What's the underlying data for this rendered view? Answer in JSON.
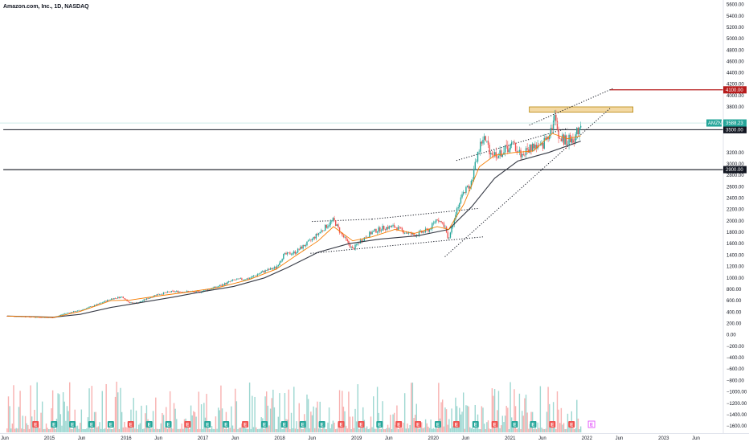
{
  "header": {
    "title": "Amazon.com, Inc., 1D, NASDAQ"
  },
  "colors": {
    "up": "#26a69a",
    "down": "#ef5350",
    "ma_fast": "#f57c00",
    "ma_slow": "#363a45",
    "last_price_tag": "#26a69a",
    "resistance_tag": "#b71c1c",
    "level_tag": "#131722",
    "zone_fill": "#f3d9a4",
    "zone_border": "#b8860b",
    "earnings_up": "#26a69a",
    "earnings_down": "#ef5350",
    "earnings_future": "#e040fb"
  },
  "chart_data": {
    "type": "candlestick",
    "symbol": "AMZN",
    "title": "Amazon.com, Inc., 1D, NASDAQ",
    "y_ticks": [
      5800,
      5600,
      5400,
      5200,
      5000,
      4800,
      4600,
      4400,
      4200,
      4000,
      3800,
      3200,
      3000,
      2800,
      2600,
      2400,
      2200,
      2000,
      1800,
      1600,
      1400,
      1200,
      1000,
      800,
      600,
      400,
      200,
      0,
      -200,
      -400,
      -600,
      -800,
      -1000,
      -1200,
      -1400,
      -1600
    ],
    "y_tick_labels": [
      "5800.00",
      "5600.00",
      "5400.00",
      "5200.00",
      "5000.00",
      "4800.00",
      "4600.00",
      "4400.00",
      "4200.00",
      "4000.00",
      "3800.00",
      "3200.00",
      "3000.00",
      "2800.00",
      "2600.00",
      "2400.00",
      "2200.00",
      "2000.00",
      "1800.00",
      "1600.00",
      "1400.00",
      "1200.00",
      "1000.00",
      "800.00",
      "600.00",
      "400.00",
      "200.00",
      "0.00",
      "−200.00",
      "−400.00",
      "−600.00",
      "−800.00",
      "−1000.00",
      "−1200.00",
      "−1400.00",
      "−1600.00"
    ],
    "x_labels": [
      {
        "text": "Jun",
        "date": 2014.42
      },
      {
        "text": "2015",
        "date": 2015.0
      },
      {
        "text": "Jun",
        "date": 2015.42
      },
      {
        "text": "2016",
        "date": 2016.0
      },
      {
        "text": "Jun",
        "date": 2016.42
      },
      {
        "text": "2017",
        "date": 2017.0
      },
      {
        "text": "Jun",
        "date": 2017.42
      },
      {
        "text": "2018",
        "date": 2018.0
      },
      {
        "text": "Jun",
        "date": 2018.42
      },
      {
        "text": "2019",
        "date": 2019.0
      },
      {
        "text": "Jun",
        "date": 2019.42
      },
      {
        "text": "2020",
        "date": 2020.0
      },
      {
        "text": "Jun",
        "date": 2020.42
      },
      {
        "text": "2021",
        "date": 2021.0
      },
      {
        "text": "Jun",
        "date": 2021.42
      },
      {
        "text": "2022",
        "date": 2022.0
      },
      {
        "text": "Jun",
        "date": 2022.42
      },
      {
        "text": "2023",
        "date": 2023.0
      },
      {
        "text": "Jun",
        "date": 2023.42
      }
    ],
    "price_path": [
      [
        2014.45,
        330
      ],
      [
        2014.6,
        325
      ],
      [
        2014.8,
        310
      ],
      [
        2014.95,
        305
      ],
      [
        2015.05,
        300
      ],
      [
        2015.2,
        375
      ],
      [
        2015.4,
        430
      ],
      [
        2015.6,
        520
      ],
      [
        2015.8,
        630
      ],
      [
        2015.95,
        670
      ],
      [
        2016.05,
        560
      ],
      [
        2016.15,
        560
      ],
      [
        2016.4,
        710
      ],
      [
        2016.6,
        760
      ],
      [
        2016.8,
        760
      ],
      [
        2016.95,
        750
      ],
      [
        2017.2,
        850
      ],
      [
        2017.4,
        960
      ],
      [
        2017.6,
        990
      ],
      [
        2017.8,
        1120
      ],
      [
        2017.95,
        1180
      ],
      [
        2018.05,
        1400
      ],
      [
        2018.2,
        1450
      ],
      [
        2018.4,
        1650
      ],
      [
        2018.6,
        1900
      ],
      [
        2018.7,
        2020
      ],
      [
        2018.8,
        1770
      ],
      [
        2018.95,
        1500
      ],
      [
        2019.05,
        1650
      ],
      [
        2019.2,
        1800
      ],
      [
        2019.35,
        1880
      ],
      [
        2019.5,
        1900
      ],
      [
        2019.6,
        1820
      ],
      [
        2019.75,
        1750
      ],
      [
        2019.95,
        1850
      ],
      [
        2020.05,
        2050
      ],
      [
        2020.15,
        1900
      ],
      [
        2020.2,
        1680
      ],
      [
        2020.3,
        2200
      ],
      [
        2020.4,
        2500
      ],
      [
        2020.5,
        2700
      ],
      [
        2020.58,
        3200
      ],
      [
        2020.65,
        3400
      ],
      [
        2020.75,
        3200
      ],
      [
        2020.85,
        3150
      ],
      [
        2020.95,
        3250
      ],
      [
        2021.05,
        3300
      ],
      [
        2021.15,
        3150
      ],
      [
        2021.3,
        3300
      ],
      [
        2021.4,
        3250
      ],
      [
        2021.5,
        3450
      ],
      [
        2021.58,
        3650
      ],
      [
        2021.65,
        3380
      ],
      [
        2021.75,
        3350
      ],
      [
        2021.85,
        3400
      ],
      [
        2021.92,
        3588
      ]
    ],
    "ma_fast": [
      [
        2014.45,
        330
      ],
      [
        2014.8,
        315
      ],
      [
        2015.05,
        305
      ],
      [
        2015.4,
        410
      ],
      [
        2015.8,
        600
      ],
      [
        2016.05,
        610
      ],
      [
        2016.4,
        680
      ],
      [
        2016.8,
        750
      ],
      [
        2017.2,
        830
      ],
      [
        2017.6,
        970
      ],
      [
        2017.95,
        1150
      ],
      [
        2018.2,
        1380
      ],
      [
        2018.5,
        1650
      ],
      [
        2018.7,
        1900
      ],
      [
        2018.95,
        1650
      ],
      [
        2019.2,
        1720
      ],
      [
        2019.5,
        1850
      ],
      [
        2019.75,
        1780
      ],
      [
        2020.05,
        1900
      ],
      [
        2020.2,
        1850
      ],
      [
        2020.4,
        2300
      ],
      [
        2020.6,
        2950
      ],
      [
        2020.8,
        3150
      ],
      [
        2021.05,
        3200
      ],
      [
        2021.3,
        3220
      ],
      [
        2021.55,
        3450
      ],
      [
        2021.75,
        3380
      ],
      [
        2021.92,
        3420
      ]
    ],
    "ma_slow": [
      [
        2014.45,
        330
      ],
      [
        2014.8,
        320
      ],
      [
        2015.05,
        310
      ],
      [
        2015.4,
        360
      ],
      [
        2015.8,
        480
      ],
      [
        2016.2,
        570
      ],
      [
        2016.6,
        660
      ],
      [
        2017.0,
        760
      ],
      [
        2017.4,
        850
      ],
      [
        2017.8,
        1000
      ],
      [
        2018.1,
        1180
      ],
      [
        2018.5,
        1450
      ],
      [
        2018.9,
        1600
      ],
      [
        2019.3,
        1680
      ],
      [
        2019.8,
        1740
      ],
      [
        2020.2,
        1850
      ],
      [
        2020.5,
        2250
      ],
      [
        2020.8,
        2750
      ],
      [
        2021.1,
        3050
      ],
      [
        2021.5,
        3200
      ],
      [
        2021.92,
        3350
      ]
    ],
    "horizontal_levels": [
      {
        "price": 3500,
        "label": "3500.00",
        "start_date": 2014.4
      },
      {
        "price": 2900,
        "label": "2900.00",
        "start_date": 2014.4
      },
      {
        "price": 4100,
        "label": "4100.00",
        "start_date": 2022.3
      }
    ],
    "resistance_zone": {
      "price_low": 3730,
      "price_high": 3800,
      "start_date": 2021.25,
      "end_date": 2022.6
    },
    "trendlines": [
      {
        "p1": [
          2020.3,
          3060
        ],
        "p2": [
          2021.75,
          3520
        ]
      },
      {
        "p1": [
          2021.25,
          3560
        ],
        "p2": [
          2022.35,
          4130
        ]
      },
      {
        "p1": [
          2020.15,
          1370
        ],
        "p2": [
          2022.3,
          3780
        ]
      },
      {
        "p1": [
          2018.42,
          1990
        ],
        "p2": [
          2019.2,
          2030
        ]
      },
      {
        "p1": [
          2019.2,
          2030
        ],
        "p2": [
          2020.6,
          2220
        ]
      },
      {
        "p1": [
          2018.4,
          1430
        ],
        "p2": [
          2020.65,
          1720
        ]
      }
    ],
    "last_price": {
      "symbol_tag": "AMZN",
      "value": "3588.23",
      "price": 3588.23
    },
    "earnings_markers": [
      {
        "date": 2014.82,
        "label": "E",
        "kind": "down"
      },
      {
        "date": 2015.06,
        "label": "E",
        "kind": "up"
      },
      {
        "date": 2015.3,
        "label": "E",
        "kind": "up"
      },
      {
        "date": 2015.55,
        "label": "E",
        "kind": "up"
      },
      {
        "date": 2015.8,
        "label": "E",
        "kind": "up"
      },
      {
        "date": 2016.06,
        "label": "E",
        "kind": "down"
      },
      {
        "date": 2016.3,
        "label": "E",
        "kind": "up"
      },
      {
        "date": 2016.55,
        "label": "E",
        "kind": "up"
      },
      {
        "date": 2016.8,
        "label": "E",
        "kind": "down"
      },
      {
        "date": 2017.06,
        "label": "E",
        "kind": "up"
      },
      {
        "date": 2017.3,
        "label": "E",
        "kind": "up"
      },
      {
        "date": 2017.55,
        "label": "E",
        "kind": "down"
      },
      {
        "date": 2017.8,
        "label": "E",
        "kind": "up"
      },
      {
        "date": 2018.06,
        "label": "E",
        "kind": "up"
      },
      {
        "date": 2018.3,
        "label": "E",
        "kind": "up"
      },
      {
        "date": 2018.55,
        "label": "E",
        "kind": "up"
      },
      {
        "date": 2018.8,
        "label": "E",
        "kind": "down"
      },
      {
        "date": 2019.06,
        "label": "E",
        "kind": "down"
      },
      {
        "date": 2019.3,
        "label": "E",
        "kind": "up"
      },
      {
        "date": 2019.55,
        "label": "E",
        "kind": "down"
      },
      {
        "date": 2019.8,
        "label": "E",
        "kind": "down"
      },
      {
        "date": 2020.06,
        "label": "E",
        "kind": "up"
      },
      {
        "date": 2020.3,
        "label": "E",
        "kind": "down"
      },
      {
        "date": 2020.55,
        "label": "E",
        "kind": "up"
      },
      {
        "date": 2020.8,
        "label": "E",
        "kind": "down"
      },
      {
        "date": 2021.06,
        "label": "E",
        "kind": "up"
      },
      {
        "date": 2021.3,
        "label": "E",
        "kind": "up"
      },
      {
        "date": 2021.55,
        "label": "E",
        "kind": "down"
      },
      {
        "date": 2021.8,
        "label": "E",
        "kind": "down"
      },
      {
        "date": 2022.06,
        "label": "E",
        "kind": "future"
      }
    ]
  }
}
